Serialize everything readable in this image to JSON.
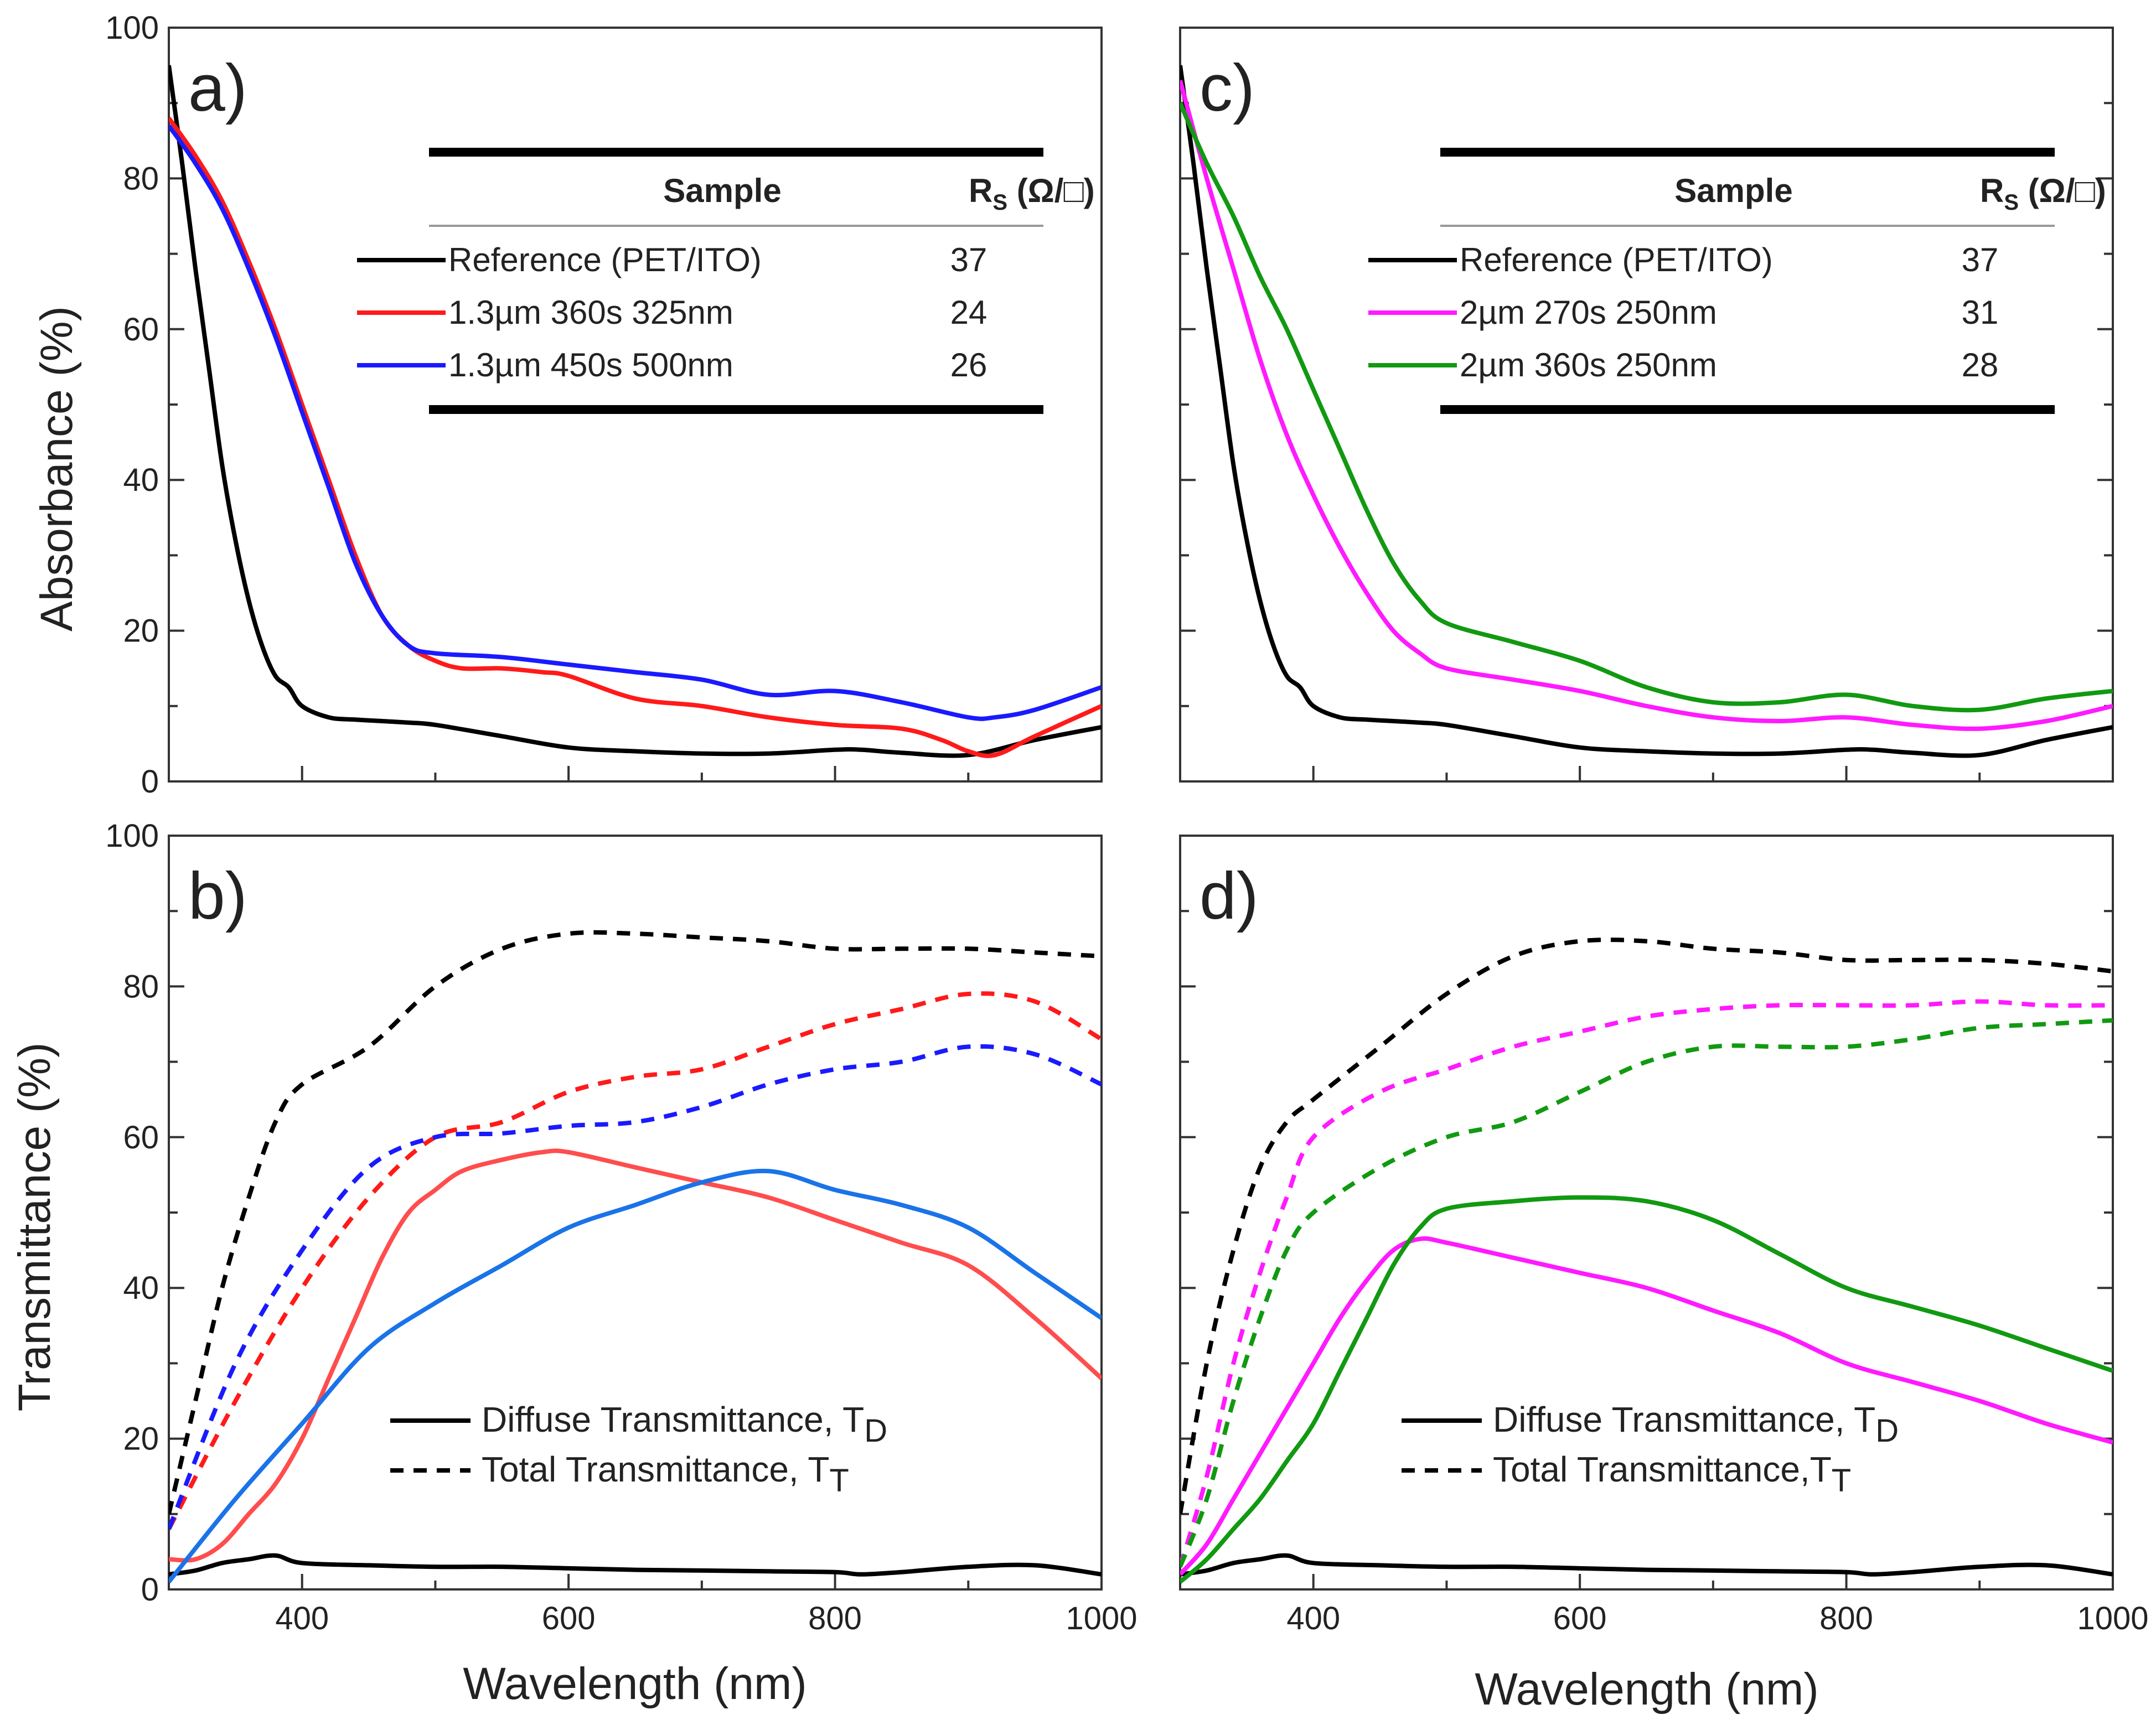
{
  "figure": {
    "x_axis_title": "Wavelength (nm)",
    "x_ticks": [
      "400",
      "600",
      "800",
      "1000"
    ],
    "y_ticks": [
      "0",
      "20",
      "40",
      "60",
      "80",
      "100"
    ]
  },
  "colors": {
    "reference": "#000000",
    "red": "#ff1a1a",
    "blue": "#1a1aff",
    "red_t": "#ff4d4d",
    "blue_t": "#1a73e8",
    "magenta": "#ff1aff",
    "green": "#119911"
  },
  "chart_data": [
    {
      "id": "a",
      "type": "line",
      "panel_label": "a)",
      "ylabel": "Absorbance (%)",
      "xlim": [
        300,
        1000
      ],
      "ylim": [
        0,
        100
      ],
      "table": {
        "headers": [
          "Sample",
          "R",
          "S",
          " (Ω/□)"
        ],
        "rows": [
          {
            "label": "Reference (PET/ITO)",
            "value": "37",
            "color": "#000000"
          },
          {
            "label": "1.3µm 360s 325nm",
            "value": "24",
            "color": "#ff1a1a"
          },
          {
            "label": "1.3µm 450s 500nm",
            "value": "26",
            "color": "#1a1aff"
          }
        ]
      },
      "series": [
        {
          "name": "Reference (PET/ITO)",
          "color": "#000000",
          "dash": "",
          "x": [
            300,
            310,
            320,
            330,
            340,
            350,
            360,
            370,
            380,
            390,
            400,
            420,
            440,
            460,
            480,
            500,
            550,
            600,
            650,
            700,
            750,
            800,
            820,
            850,
            900,
            950,
            1000
          ],
          "y": [
            95,
            82,
            68,
            55,
            42,
            32,
            24,
            18,
            14,
            12.5,
            10,
            8.5,
            8.2,
            8,
            7.8,
            7.5,
            6,
            4.5,
            4,
            3.7,
            3.7,
            4.2,
            4.2,
            3.8,
            3.5,
            5.5,
            7.2
          ]
        },
        {
          "name": "1.3µm 360s 325nm",
          "color": "#ff1a1a",
          "dash": "",
          "x": [
            300,
            320,
            340,
            360,
            380,
            400,
            420,
            440,
            460,
            480,
            500,
            520,
            550,
            580,
            600,
            650,
            700,
            750,
            800,
            850,
            880,
            900,
            920,
            950,
            1000
          ],
          "y": [
            88,
            83,
            77,
            69,
            60,
            50,
            40,
            30,
            22,
            18,
            16,
            15,
            15,
            14.5,
            14,
            11,
            10,
            8.5,
            7.5,
            7,
            5.5,
            4,
            3.5,
            6,
            10
          ]
        },
        {
          "name": "1.3µm 450s 500nm",
          "color": "#1a1aff",
          "dash": "",
          "x": [
            300,
            320,
            340,
            360,
            380,
            400,
            420,
            440,
            460,
            480,
            500,
            550,
            600,
            650,
            700,
            750,
            800,
            850,
            900,
            920,
            950,
            1000
          ],
          "y": [
            87,
            82,
            76,
            68,
            59,
            49,
            39,
            29,
            22,
            18,
            17,
            16.5,
            15.5,
            14.5,
            13.5,
            11.5,
            12,
            10.5,
            8.5,
            8.5,
            9.5,
            12.5
          ]
        }
      ]
    },
    {
      "id": "b",
      "type": "line",
      "panel_label": "b)",
      "ylabel": "Transmittance (%)",
      "xlim": [
        300,
        1000
      ],
      "ylim": [
        0,
        100
      ],
      "legend": [
        {
          "label": "Diffuse Transmittance, T",
          "sub": "D",
          "dash": ""
        },
        {
          "label": "Total Transmittance, T",
          "sub": "T",
          "dash": "24 18"
        }
      ],
      "series": [
        {
          "name": "Reference TD",
          "color": "#000000",
          "dash": "",
          "x": [
            300,
            320,
            340,
            360,
            380,
            400,
            450,
            500,
            550,
            600,
            650,
            700,
            750,
            800,
            820,
            850,
            900,
            950,
            1000
          ],
          "y": [
            2,
            2.5,
            3.5,
            4,
            4.5,
            3.5,
            3.2,
            3,
            3,
            2.8,
            2.6,
            2.5,
            2.4,
            2.3,
            2,
            2.3,
            3,
            3.2,
            2
          ]
        },
        {
          "name": "Reference TT",
          "color": "#000000",
          "dash": "24 18",
          "x": [
            300,
            320,
            340,
            360,
            380,
            400,
            450,
            500,
            550,
            600,
            650,
            700,
            750,
            800,
            850,
            900,
            950,
            1000
          ],
          "y": [
            10,
            25,
            40,
            52,
            62,
            67,
            72,
            80,
            85,
            87,
            87,
            86.5,
            86,
            85,
            85,
            85,
            84.5,
            84
          ]
        },
        {
          "name": "1.3µm 360s 325nm TT",
          "color": "#ff1a1a",
          "dash": "24 18",
          "x": [
            300,
            350,
            400,
            450,
            500,
            550,
            600,
            650,
            700,
            750,
            800,
            850,
            900,
            950,
            1000
          ],
          "y": [
            8,
            25,
            40,
            52,
            60,
            62,
            66,
            68,
            69,
            72,
            75,
            77,
            79,
            78,
            73
          ]
        },
        {
          "name": "1.3µm 450s 500nm TT",
          "color": "#1a1aff",
          "dash": "24 18",
          "x": [
            300,
            350,
            400,
            450,
            500,
            550,
            600,
            650,
            700,
            750,
            800,
            850,
            900,
            950,
            1000
          ],
          "y": [
            8,
            30,
            45,
            56,
            60,
            60.5,
            61.5,
            62,
            64,
            67,
            69,
            70,
            72,
            71,
            67
          ]
        },
        {
          "name": "1.3µm 360s 325nm TD",
          "color": "#ff4d4d",
          "dash": "",
          "x": [
            300,
            320,
            340,
            360,
            380,
            400,
            420,
            440,
            460,
            480,
            500,
            520,
            550,
            580,
            600,
            650,
            700,
            750,
            800,
            850,
            900,
            950,
            1000
          ],
          "y": [
            4,
            4,
            6,
            10,
            14,
            20,
            28,
            36,
            44,
            50,
            53,
            55.5,
            57,
            58,
            58,
            56,
            54,
            52,
            49,
            46,
            43,
            36,
            28
          ]
        },
        {
          "name": "1.3µm 450s 500nm TD",
          "color": "#1a73e8",
          "dash": "",
          "x": [
            300,
            350,
            400,
            450,
            500,
            550,
            600,
            650,
            700,
            750,
            800,
            850,
            900,
            950,
            1000
          ],
          "y": [
            1,
            12,
            22,
            32,
            38,
            43,
            48,
            51,
            54,
            55.5,
            53,
            51,
            48,
            42,
            36
          ]
        }
      ]
    },
    {
      "id": "c",
      "type": "line",
      "panel_label": "c)",
      "ylabel": "",
      "xlim": [
        300,
        1000
      ],
      "ylim": [
        0,
        100
      ],
      "table": {
        "headers": [
          "Sample",
          "R",
          "S",
          " (Ω/□)"
        ],
        "rows": [
          {
            "label": "Reference (PET/ITO)",
            "value": "37",
            "color": "#000000"
          },
          {
            "label": "2µm 270s 250nm",
            "value": "31",
            "color": "#ff1aff"
          },
          {
            "label": "2µm 360s 250nm",
            "value": "28",
            "color": "#119911"
          }
        ]
      },
      "series": [
        {
          "name": "Reference (PET/ITO)",
          "color": "#000000",
          "dash": "",
          "x": [
            300,
            310,
            320,
            330,
            340,
            350,
            360,
            370,
            380,
            390,
            400,
            420,
            440,
            460,
            480,
            500,
            550,
            600,
            650,
            700,
            750,
            800,
            820,
            850,
            900,
            950,
            1000
          ],
          "y": [
            95,
            82,
            68,
            55,
            42,
            32,
            24,
            18,
            14,
            12.5,
            10,
            8.5,
            8.2,
            8,
            7.8,
            7.5,
            6,
            4.5,
            4,
            3.7,
            3.7,
            4.2,
            4.2,
            3.8,
            3.5,
            5.5,
            7.2
          ]
        },
        {
          "name": "2µm 270s 250nm",
          "color": "#ff1aff",
          "dash": "",
          "x": [
            300,
            320,
            340,
            360,
            380,
            400,
            420,
            440,
            460,
            480,
            500,
            550,
            600,
            650,
            700,
            750,
            800,
            850,
            900,
            950,
            1000
          ],
          "y": [
            93,
            80,
            68,
            56,
            46,
            38,
            31,
            25,
            20,
            17,
            15,
            13.5,
            12,
            10,
            8.5,
            8,
            8.5,
            7.5,
            7,
            8,
            10
          ]
        },
        {
          "name": "2µm 360s 250nm",
          "color": "#119911",
          "dash": "",
          "x": [
            300,
            320,
            340,
            360,
            380,
            400,
            420,
            440,
            460,
            480,
            500,
            550,
            600,
            650,
            700,
            750,
            800,
            850,
            900,
            950,
            1000
          ],
          "y": [
            90,
            82,
            75,
            67,
            60,
            52,
            44,
            36,
            29,
            24,
            21,
            18.5,
            16,
            12.5,
            10.5,
            10.5,
            11.5,
            10,
            9.5,
            11,
            12
          ]
        }
      ]
    },
    {
      "id": "d",
      "type": "line",
      "panel_label": "d)",
      "ylabel": "",
      "xlim": [
        300,
        1000
      ],
      "ylim": [
        0,
        100
      ],
      "legend": [
        {
          "label": "Diffuse Transmittance, T",
          "sub": "D",
          "dash": ""
        },
        {
          "label": "Total Transmittance,T",
          "sub": "T",
          "dash": "24 18"
        }
      ],
      "series": [
        {
          "name": "Reference TD",
          "color": "#000000",
          "dash": "",
          "x": [
            300,
            320,
            340,
            360,
            380,
            400,
            450,
            500,
            550,
            600,
            650,
            700,
            750,
            800,
            820,
            850,
            900,
            950,
            1000
          ],
          "y": [
            2,
            2.5,
            3.5,
            4,
            4.5,
            3.5,
            3.2,
            3,
            3,
            2.8,
            2.6,
            2.5,
            2.4,
            2.3,
            2,
            2.3,
            3,
            3.2,
            2
          ]
        },
        {
          "name": "Reference TT",
          "color": "#000000",
          "dash": "24 18",
          "x": [
            300,
            320,
            340,
            360,
            380,
            400,
            450,
            500,
            550,
            600,
            650,
            700,
            750,
            800,
            850,
            900,
            950,
            1000
          ],
          "y": [
            10,
            30,
            45,
            56,
            62,
            65,
            72,
            79,
            84,
            86,
            86,
            85,
            84.5,
            83.5,
            83.5,
            83.5,
            83,
            82
          ]
        },
        {
          "name": "2µm 270s 250nm TT",
          "color": "#ff1aff",
          "dash": "24 18",
          "x": [
            300,
            320,
            340,
            360,
            380,
            400,
            450,
            500,
            550,
            600,
            650,
            700,
            750,
            800,
            850,
            900,
            950,
            1000
          ],
          "y": [
            3,
            15,
            30,
            42,
            52,
            60,
            66,
            69,
            72,
            74,
            76,
            77,
            77.5,
            77.5,
            77.5,
            78,
            77.5,
            77.5
          ]
        },
        {
          "name": "2µm 360s 250nm TT",
          "color": "#119911",
          "dash": "24 18",
          "x": [
            300,
            320,
            340,
            360,
            380,
            400,
            450,
            500,
            550,
            600,
            650,
            700,
            750,
            800,
            850,
            900,
            950,
            1000
          ],
          "y": [
            3,
            12,
            25,
            36,
            45,
            50,
            56,
            60,
            62,
            66,
            70,
            72,
            72,
            72,
            73,
            74.5,
            75,
            75.5
          ]
        },
        {
          "name": "2µm 270s 250nm TD",
          "color": "#ff1aff",
          "dash": "",
          "x": [
            300,
            320,
            340,
            360,
            380,
            400,
            420,
            440,
            460,
            480,
            500,
            550,
            600,
            650,
            700,
            750,
            800,
            850,
            900,
            950,
            1000
          ],
          "y": [
            2,
            6,
            12,
            18,
            24,
            30,
            36,
            41,
            45,
            46.5,
            46,
            44,
            42,
            40,
            37,
            34,
            30,
            27.5,
            25,
            22,
            19.5
          ]
        },
        {
          "name": "2µm 360s 250nm TD",
          "color": "#119911",
          "dash": "",
          "x": [
            300,
            320,
            340,
            360,
            380,
            400,
            420,
            440,
            460,
            480,
            500,
            550,
            600,
            650,
            700,
            750,
            800,
            850,
            900,
            950,
            1000
          ],
          "y": [
            1,
            4,
            8,
            12,
            17,
            22,
            29,
            36,
            43,
            48,
            50.5,
            51.5,
            52,
            51.5,
            49,
            44.5,
            40,
            37.5,
            35,
            32,
            29
          ]
        }
      ]
    }
  ]
}
